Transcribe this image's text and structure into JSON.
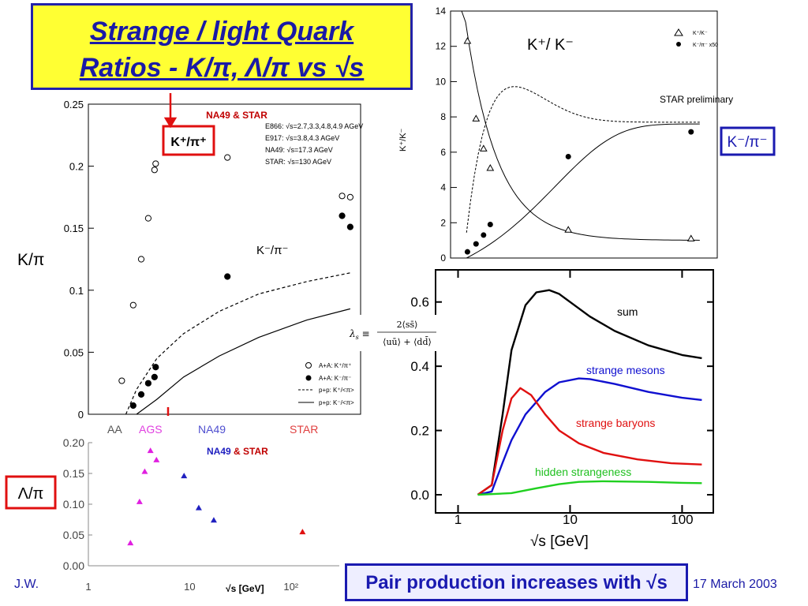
{
  "slide": {
    "title_line1": "Strange / light Quark",
    "title_line2": "Ratios - K/π, Λ/π  vs √s",
    "author": "J.W.",
    "date": "17 March 2003",
    "bottom_box": "Pair production increases with √s"
  },
  "callouts": {
    "kplus_piplus": "K⁺/π⁺",
    "kminus_piminus_box": "K⁻/π⁻",
    "lambda_pi": "Λ/π",
    "k_over_pi_axis": "K/π",
    "kminus_piminus_plot": "K⁻/π⁻",
    "kplus_kminus": "K⁺/ K⁻",
    "formula": "λs ≡ 2⟨ss̄⟩ / (⟨uū⟩ + ⟨dd̄⟩)"
  },
  "chart_data": [
    {
      "type": "scatter",
      "title": "NA49 & STAR",
      "ylabel": "K/π",
      "ylim": [
        0,
        0.25
      ],
      "yticks": [
        "0",
        "0.05",
        "0.1",
        "0.15",
        "0.2",
        "0.25"
      ],
      "legend_text": [
        "E866: √s=2.7,3.3,4.8,4.9 AGeV",
        "E917: √s=3.8,4.3 AGeV",
        "NA49: √s=17.3 AGeV",
        "STAR: √s=130 AGeV"
      ],
      "legend_markers": [
        "A+A: K⁺/π⁺",
        "A+A: K⁻/π⁻",
        "p+p: K⁺/<π>",
        "p+p: K⁻/<π>"
      ],
      "series": [
        {
          "name": "A+A: K⁺/π⁺",
          "marker": "open-circle",
          "x": [
            2.7,
            3.3,
            3.8,
            4.3,
            4.8,
            4.9,
            17.3,
            130,
            150
          ],
          "y": [
            0.027,
            0.088,
            0.125,
            0.158,
            0.197,
            0.202,
            0.207,
            0.176,
            0.175
          ]
        },
        {
          "name": "A+A: K⁻/π⁻",
          "marker": "filled-circle",
          "x": [
            3.3,
            3.8,
            4.3,
            4.8,
            4.9,
            17.3,
            130,
            150
          ],
          "y": [
            0.007,
            0.016,
            0.025,
            0.03,
            0.038,
            0.111,
            0.16,
            0.151
          ]
        },
        {
          "name": "p+p: K⁺/<π>",
          "marker": "dashed-line",
          "x": [
            2.9,
            3.5,
            5,
            8,
            15,
            30,
            70,
            150
          ],
          "y": [
            0.0,
            0.02,
            0.045,
            0.065,
            0.083,
            0.097,
            0.107,
            0.114
          ]
        },
        {
          "name": "p+p: K⁻/<π>",
          "marker": "solid-line",
          "x": [
            3.5,
            5,
            8,
            15,
            30,
            70,
            150
          ],
          "y": [
            0.0,
            0.012,
            0.03,
            0.047,
            0.062,
            0.076,
            0.085
          ]
        }
      ]
    },
    {
      "type": "scatter",
      "title": "NA49 & STAR",
      "labels": [
        "AA",
        "AGS",
        "NA49",
        "STAR"
      ],
      "xlabel": "√s [GeV]",
      "ylabel": "Λ/π",
      "ylim": [
        0,
        0.2
      ],
      "yticks": [
        "0.00",
        "0.05",
        "0.10",
        "0.15",
        "0.20"
      ],
      "xticks": [
        "1",
        "10",
        "10²"
      ],
      "series": [
        {
          "name": "AGS",
          "color": "#e020e0",
          "x": [
            2.6,
            3.2,
            3.6,
            4.1,
            4.7
          ],
          "y": [
            0.037,
            0.104,
            0.153,
            0.187,
            0.172
          ]
        },
        {
          "name": "NA49",
          "color": "#2020c0",
          "x": [
            8.8,
            12.3,
            17.3
          ],
          "y": [
            0.146,
            0.094,
            0.074
          ]
        },
        {
          "name": "STAR",
          "color": "#e01010",
          "x": [
            130
          ],
          "y": [
            0.055
          ]
        }
      ]
    },
    {
      "type": "scatter",
      "title": "STAR preliminary",
      "ylabel": "K⁺/K⁻",
      "ylim": [
        0,
        14
      ],
      "yticks": [
        "0",
        "2",
        "4",
        "6",
        "8",
        "10",
        "12",
        "14"
      ],
      "legend": [
        "K⁺/K⁻",
        "K⁻/π⁻ x50"
      ],
      "series": [
        {
          "name": "K⁺/K⁻",
          "marker": "open-triangle",
          "x": [
            3.3,
            3.8,
            4.3,
            4.8,
            17.3,
            130
          ],
          "y": [
            12.3,
            7.9,
            6.2,
            5.1,
            1.6,
            1.1
          ]
        },
        {
          "name": "K⁻/π⁻ x50",
          "marker": "filled-circle",
          "x": [
            3.3,
            3.8,
            4.3,
            4.8,
            17.3,
            130
          ],
          "y": [
            0.35,
            0.8,
            1.3,
            1.9,
            5.75,
            7.15
          ]
        }
      ]
    },
    {
      "type": "line",
      "xlabel": "√s  [GeV]",
      "xticks": [
        "1",
        "10",
        "100"
      ],
      "yticks": [
        "0.0",
        "0.2",
        "0.4",
        "0.6"
      ],
      "ylim": [
        0,
        0.7
      ],
      "series": [
        {
          "name": "sum",
          "color": "#000000",
          "x": [
            1.5,
            2,
            2.5,
            3,
            4,
            5,
            6.5,
            8,
            10,
            15,
            25,
            50,
            100,
            150
          ],
          "y": [
            0.0,
            0.03,
            0.25,
            0.45,
            0.59,
            0.63,
            0.637,
            0.625,
            0.6,
            0.555,
            0.51,
            0.465,
            0.435,
            0.425
          ]
        },
        {
          "name": "strange mesons",
          "color": "#1010d0",
          "x": [
            1.5,
            2,
            2.5,
            3,
            4,
            6,
            8,
            12,
            15,
            25,
            50,
            100,
            150
          ],
          "y": [
            0.0,
            0.01,
            0.1,
            0.17,
            0.25,
            0.32,
            0.35,
            0.362,
            0.36,
            0.345,
            0.32,
            0.302,
            0.295
          ]
        },
        {
          "name": "strange baryons",
          "color": "#e01010",
          "x": [
            1.5,
            2,
            2.5,
            3,
            3.6,
            4.5,
            6,
            8,
            12,
            20,
            40,
            80,
            150
          ],
          "y": [
            0.0,
            0.03,
            0.2,
            0.3,
            0.332,
            0.31,
            0.25,
            0.2,
            0.16,
            0.13,
            0.11,
            0.098,
            0.094
          ]
        },
        {
          "name": "hidden strangeness",
          "color": "#20d020",
          "x": [
            1.5,
            3,
            5,
            8,
            12,
            20,
            50,
            100,
            150
          ],
          "y": [
            0.0,
            0.005,
            0.02,
            0.033,
            0.04,
            0.042,
            0.04,
            0.037,
            0.036
          ]
        }
      ]
    }
  ]
}
